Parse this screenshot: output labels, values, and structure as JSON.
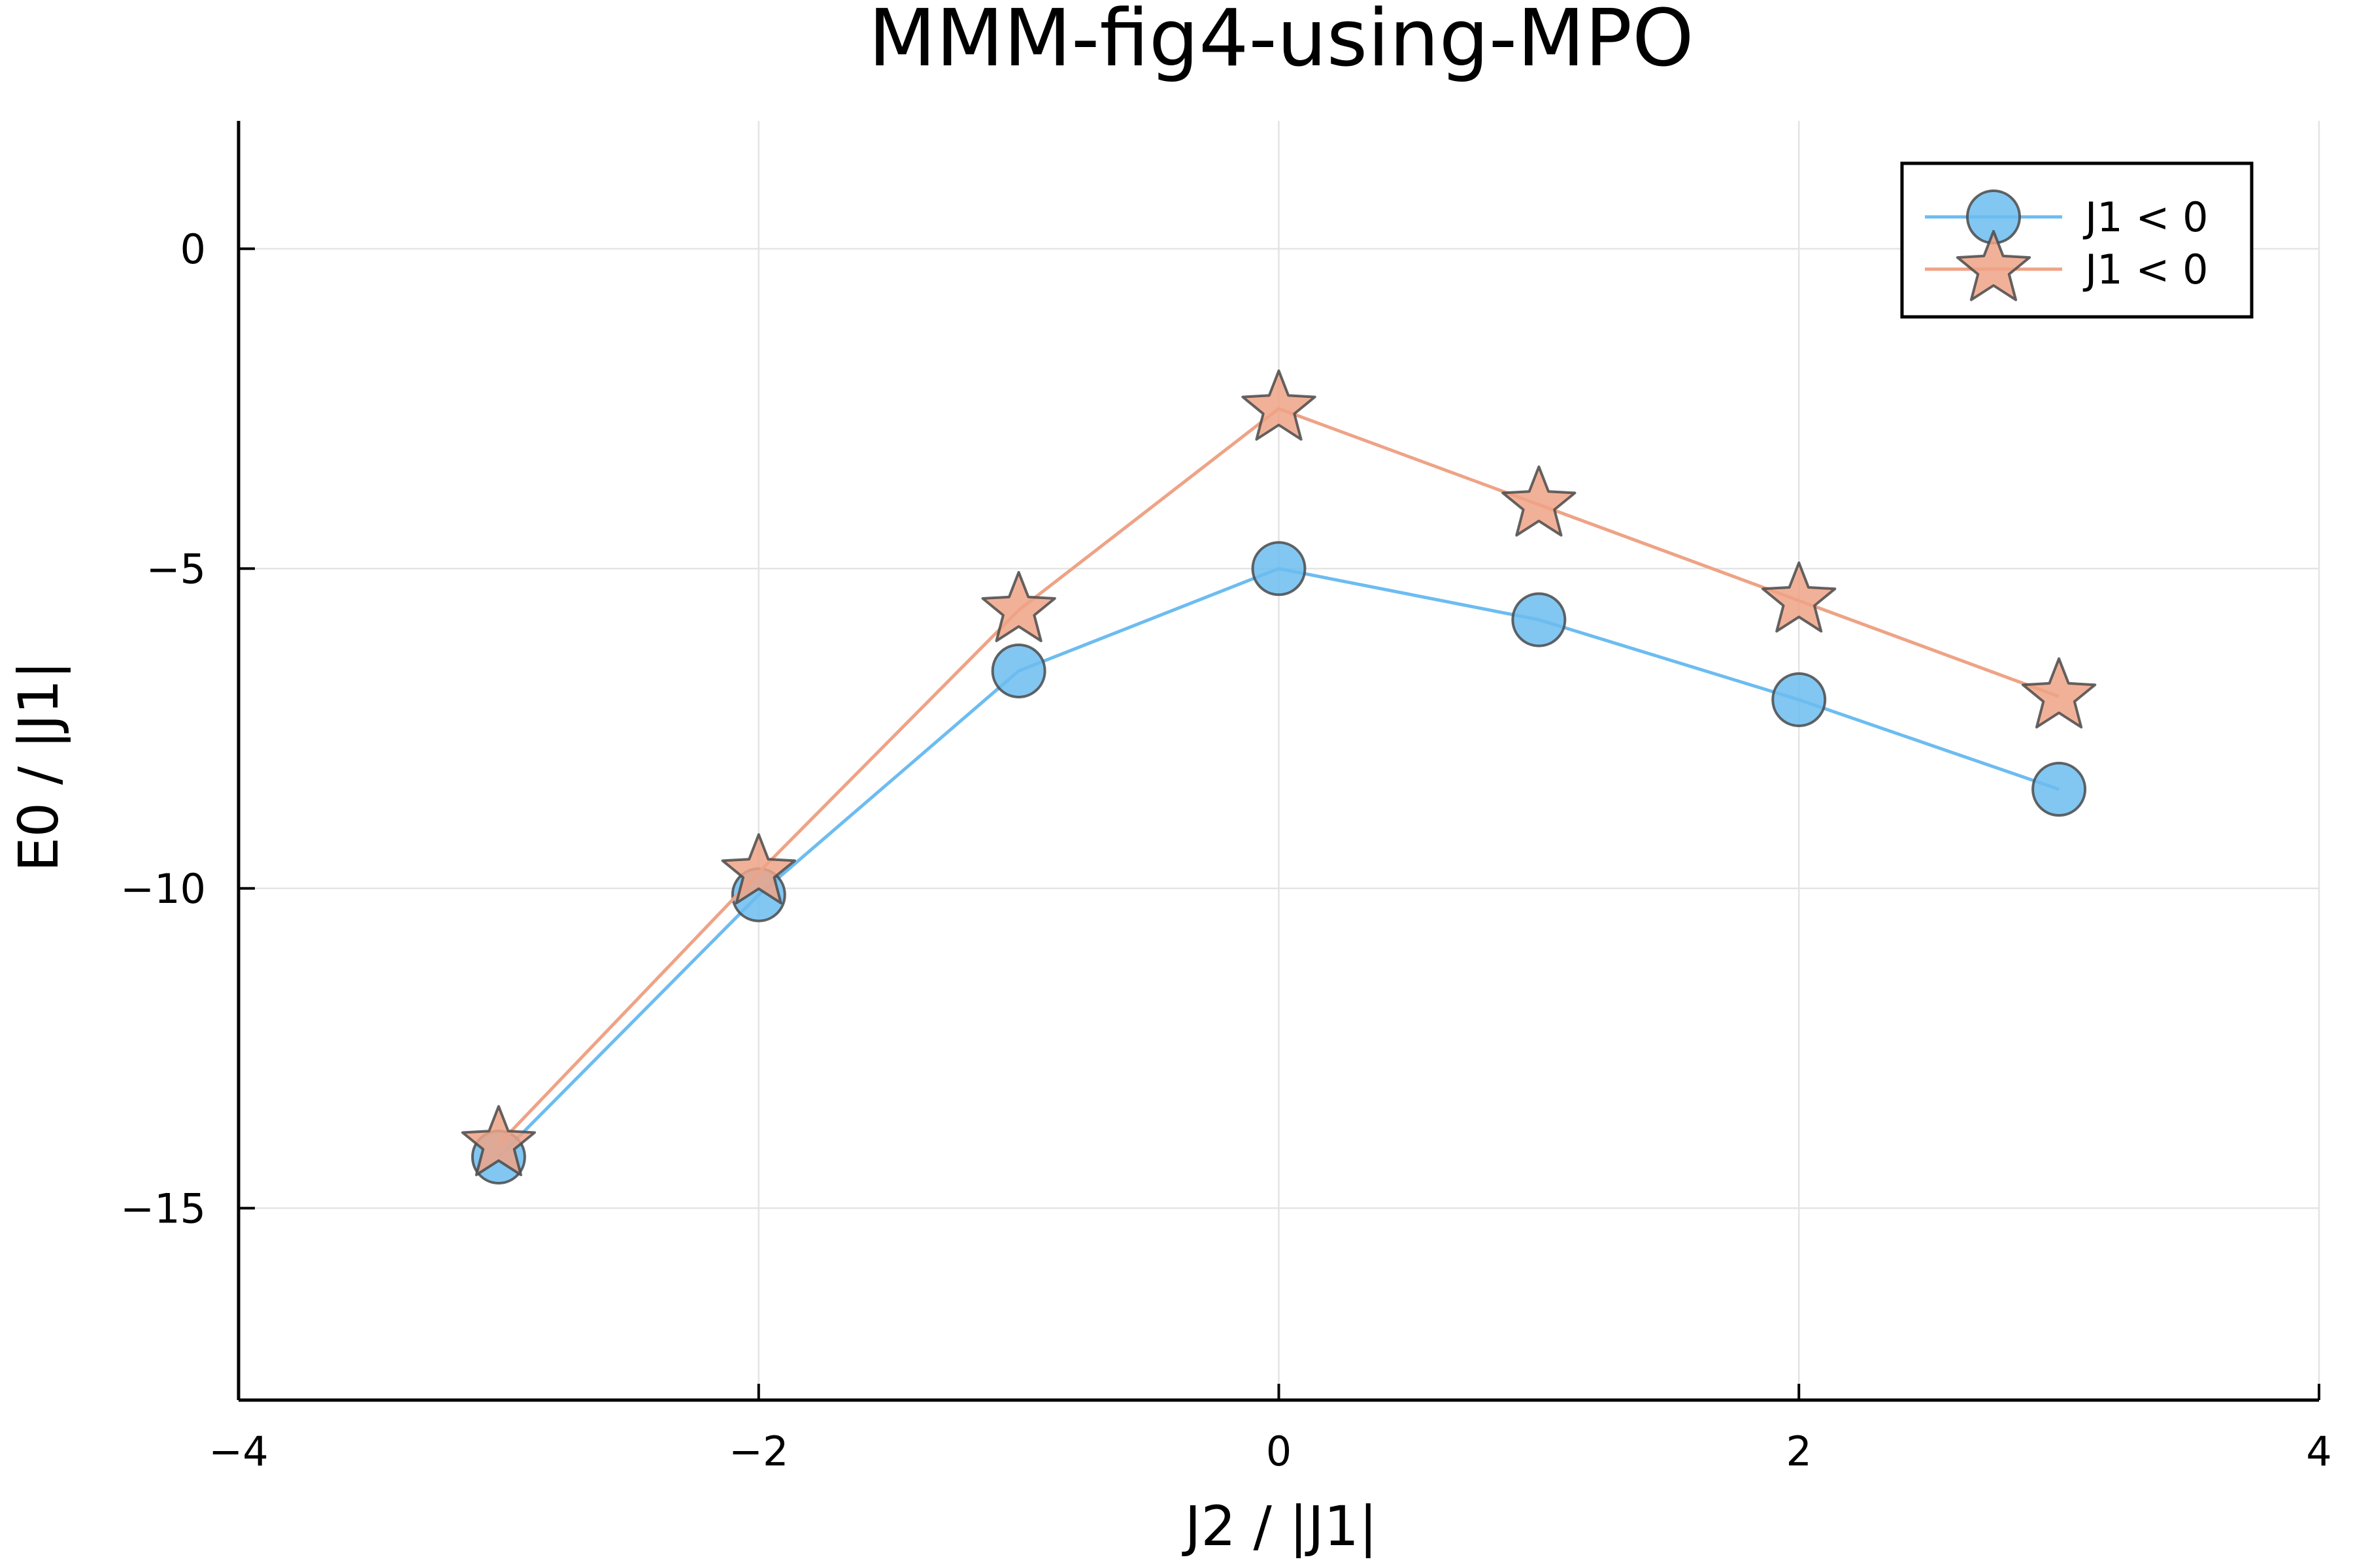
{
  "chart_data": {
    "type": "line",
    "title": "MMM-fig4-using-MPO",
    "xlabel": "J2 / |J1|",
    "ylabel": "E0 / |J1|",
    "xlim": [
      -4,
      4
    ],
    "ylim": [
      -18,
      2
    ],
    "xticks": [
      -4,
      -2,
      0,
      2,
      4
    ],
    "yticks": [
      0,
      -5,
      -10,
      -15
    ],
    "xtick_labels": [
      "−4",
      "−2",
      "0",
      "2",
      "4"
    ],
    "ytick_labels": [
      "0",
      "−5",
      "−10",
      "−15"
    ],
    "grid": true,
    "legend_position": "top-right",
    "x": [
      -3,
      -2,
      -1,
      0,
      1,
      2,
      3
    ],
    "series": [
      {
        "name": "J1 < 0",
        "marker": "circle",
        "color": "#6cbcf0",
        "values": [
          -14.2,
          -10.1,
          -6.6,
          -5.0,
          -5.8,
          -7.05,
          -8.45
        ]
      },
      {
        "name": "J1 < 0",
        "marker": "star",
        "color": "#eea386",
        "values": [
          -14.0,
          -9.75,
          -5.65,
          -2.5,
          -4.0,
          -5.5,
          -7.0
        ]
      }
    ]
  }
}
